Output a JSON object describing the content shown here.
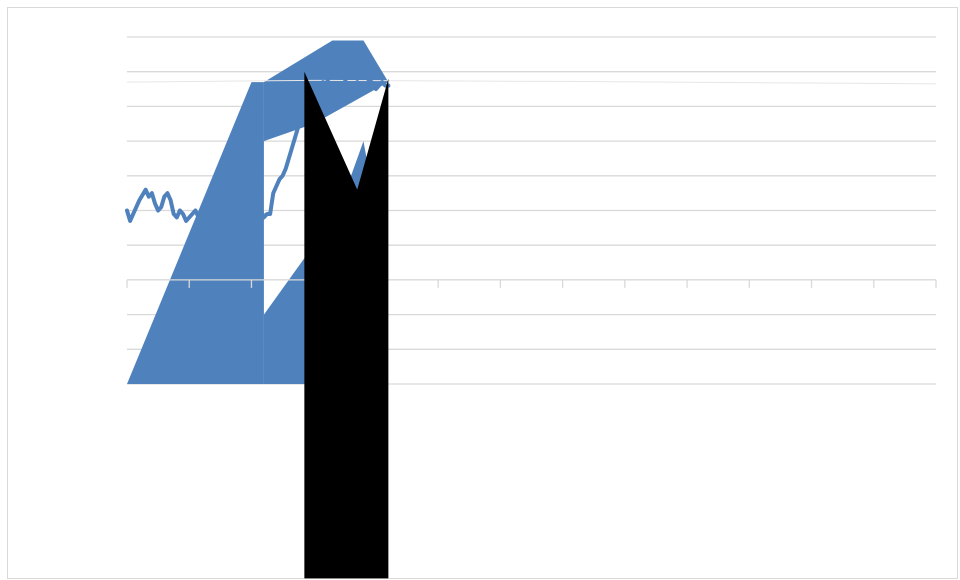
{
  "chart_data": {
    "type": "line",
    "title": "",
    "xlabel": "",
    "ylabel": "",
    "grid": true,
    "legend": "none",
    "colors": {
      "series": "#4f81bd",
      "overlay": "#000000",
      "grid": "#d9d9d9",
      "axis": "#d9d9d9"
    },
    "ylim": [
      -3,
      7
    ],
    "xlim": [
      0,
      13
    ],
    "x_tick_count": 13,
    "gridline_values": [
      -3,
      -2,
      -1,
      0,
      1,
      2,
      3,
      4,
      5,
      6,
      7
    ],
    "series": [
      {
        "type": "line",
        "x": [
          0.0,
          0.05,
          0.1,
          0.2,
          0.3,
          0.35,
          0.4,
          0.45,
          0.5,
          0.55,
          0.6,
          0.65,
          0.7,
          0.75,
          0.8,
          0.85,
          0.9,
          0.95,
          1.0,
          1.05,
          1.1,
          1.15,
          1.2,
          1.25,
          1.3,
          1.35,
          1.4,
          1.45,
          1.5,
          1.55,
          1.6,
          1.65,
          1.7,
          1.75,
          1.8,
          1.85,
          1.9,
          1.95,
          2.0,
          2.05,
          2.1,
          2.15,
          2.2,
          2.25,
          2.3,
          2.35,
          2.4,
          2.45,
          2.5,
          2.55,
          2.6,
          2.65,
          2.7,
          2.75,
          2.8,
          2.85,
          2.9,
          2.95,
          3.0,
          3.05,
          3.1,
          3.15,
          3.2,
          3.25,
          3.3,
          3.35,
          3.4,
          3.45,
          3.5,
          3.55,
          3.6,
          3.65,
          3.7,
          3.75,
          3.8,
          3.85,
          3.9,
          3.95,
          4.0,
          4.05,
          4.1,
          4.15,
          4.2
        ],
        "values": [
          2.0,
          1.7,
          1.9,
          2.3,
          2.6,
          2.4,
          2.5,
          2.2,
          2.0,
          2.1,
          2.4,
          2.5,
          2.3,
          1.9,
          1.8,
          2.0,
          1.9,
          1.7,
          1.8,
          1.9,
          2.0,
          1.8,
          1.9,
          2.0,
          1.9,
          1.8,
          1.9,
          2.0,
          1.9,
          2.0,
          1.8,
          2.0,
          1.9,
          2.0,
          2.1,
          1.8,
          1.9,
          2.0,
          2.1,
          2.0,
          1.9,
          2.0,
          1.8,
          1.9,
          1.9,
          2.5,
          2.7,
          2.9,
          3.0,
          3.2,
          3.5,
          3.8,
          4.1,
          4.4,
          4.6,
          4.8,
          5.0,
          5.3,
          5.4,
          5.5,
          5.6,
          5.7,
          5.6,
          5.9,
          6.2,
          6.4,
          6.2,
          6.0,
          5.8,
          5.5,
          5.4,
          5.6,
          5.7,
          5.6,
          5.4,
          5.6,
          5.8,
          5.6,
          5.5,
          5.6,
          5.7,
          5.6,
          5.6
        ]
      },
      {
        "type": "area",
        "x": [
          0.0,
          3.0,
          7.0,
          13.0
        ],
        "values": [
          5.7,
          5.75,
          5.72,
          5.65
        ]
      },
      {
        "type": "area-fill",
        "color": "#4f81bd",
        "polygons": [
          [
            [
              0.0,
              -3.0
            ],
            [
              2.0,
              5.7
            ],
            [
              2.2,
              5.7
            ],
            [
              2.2,
              -3.0
            ]
          ],
          [
            [
              2.2,
              5.7
            ],
            [
              3.3,
              6.9
            ],
            [
              3.8,
              6.9
            ],
            [
              4.2,
              5.7
            ],
            [
              3.0,
              4.5
            ],
            [
              2.2,
              4.0
            ]
          ],
          [
            [
              2.2,
              -3.0
            ],
            [
              2.2,
              -1.0
            ],
            [
              3.4,
              2.0
            ],
            [
              3.8,
              4.0
            ],
            [
              4.0,
              2.0
            ],
            [
              4.0,
              -3.0
            ]
          ]
        ]
      }
    ],
    "overlay": {
      "type": "shape",
      "color": "#000000",
      "points": [
        [
          2.85,
          6.0
        ],
        [
          3.7,
          2.6
        ],
        [
          4.2,
          5.8
        ],
        [
          4.2,
          -8.6
        ],
        [
          2.85,
          -8.6
        ]
      ]
    }
  }
}
